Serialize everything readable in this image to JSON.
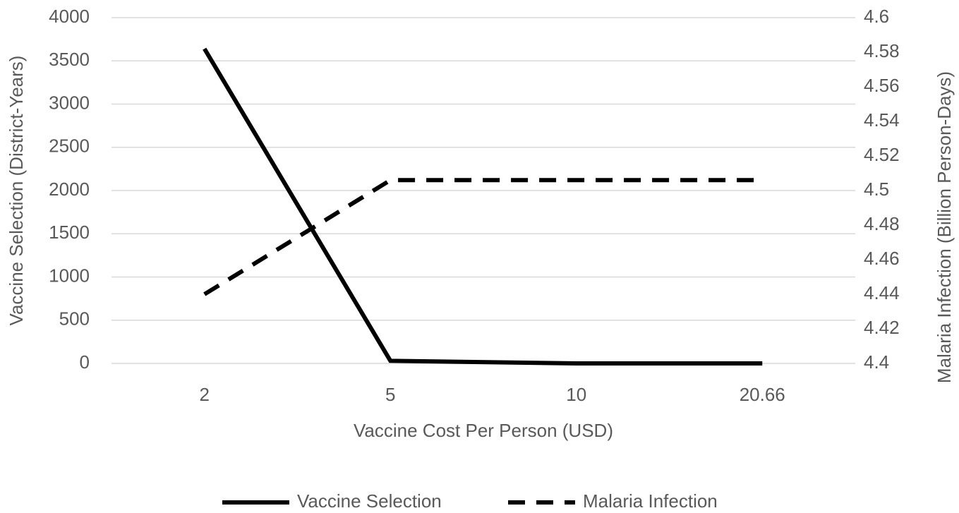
{
  "chart_data": {
    "type": "line",
    "categories": [
      "2",
      "5",
      "10",
      "20.66"
    ],
    "x_label": "Vaccine Cost Per Person (USD)",
    "y_label": "Vaccine Selection (District-Years)",
    "y2_label": "Malaria Infection (Billion Person-Days)",
    "ylim": [
      0,
      4000
    ],
    "yticks": [
      0,
      500,
      1000,
      1500,
      2000,
      2500,
      3000,
      3500,
      4000
    ],
    "y2lim": [
      4.4,
      4.6
    ],
    "y2ticks": [
      4.4,
      4.42,
      4.44,
      4.46,
      4.48,
      4.5,
      4.52,
      4.54,
      4.56,
      4.58,
      4.6
    ],
    "grid": true,
    "legend": "bottom",
    "series": [
      {
        "name": "Vaccine Selection",
        "color": "#000000",
        "dash": "solid",
        "values": [
          3640,
          30,
          0,
          0
        ]
      },
      {
        "name": "Malaria Infection",
        "color": "#000000",
        "dash": "dashed",
        "axis": "y2",
        "values": [
          4.44,
          4.506,
          4.506,
          4.506
        ]
      }
    ]
  }
}
